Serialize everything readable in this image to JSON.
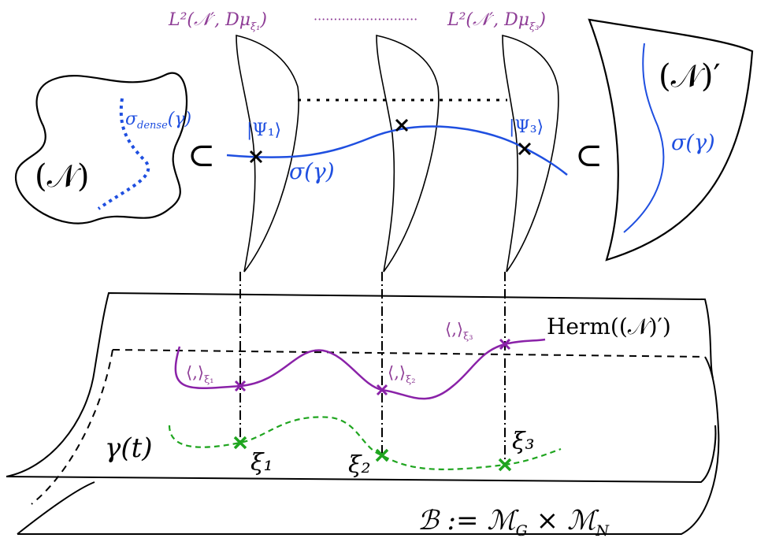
{
  "colors": {
    "black": "#000000",
    "blue": "#1f4fe0",
    "purple": "#8a22a8",
    "purpleText": "#8e3d96",
    "green": "#1fa51f"
  },
  "hilbert": {
    "left_label": "L²(𝒩′, Dμ",
    "left_sub": "ξ₁",
    "right_label": "L²(𝒩′, Dμ",
    "right_sub": "ξ₃",
    "close_paren": ")",
    "dots": "··························"
  },
  "nuclear": {
    "label": "(𝒩)",
    "dense_label": "σ",
    "dense_sub": "dense",
    "dense_arg": "(γ)"
  },
  "dual": {
    "label": "(𝒩)′",
    "curve_label": "σ(γ)"
  },
  "section": {
    "label": "σ(γ)",
    "psi1": "|Ψ₁⟩",
    "psi3": "|Ψ₃⟩",
    "subset_left": "⊂",
    "subset_right": "⊂"
  },
  "bundle": {
    "herm_label": "Herm((𝒩)′)",
    "ip_base": "⟨,⟩",
    "ip1_sub": "ξ₁",
    "ip2_sub": "ξ₂",
    "ip3_sub": "ξ₃",
    "gamma_label": "γ(t)",
    "xi1": "ξ₁",
    "xi2": "ξ₂",
    "xi3": "ξ₃",
    "base_label": "ℬ := ℳ",
    "base_sub_g": "G",
    "base_times": " × ℳ",
    "base_sub_n": "N"
  }
}
